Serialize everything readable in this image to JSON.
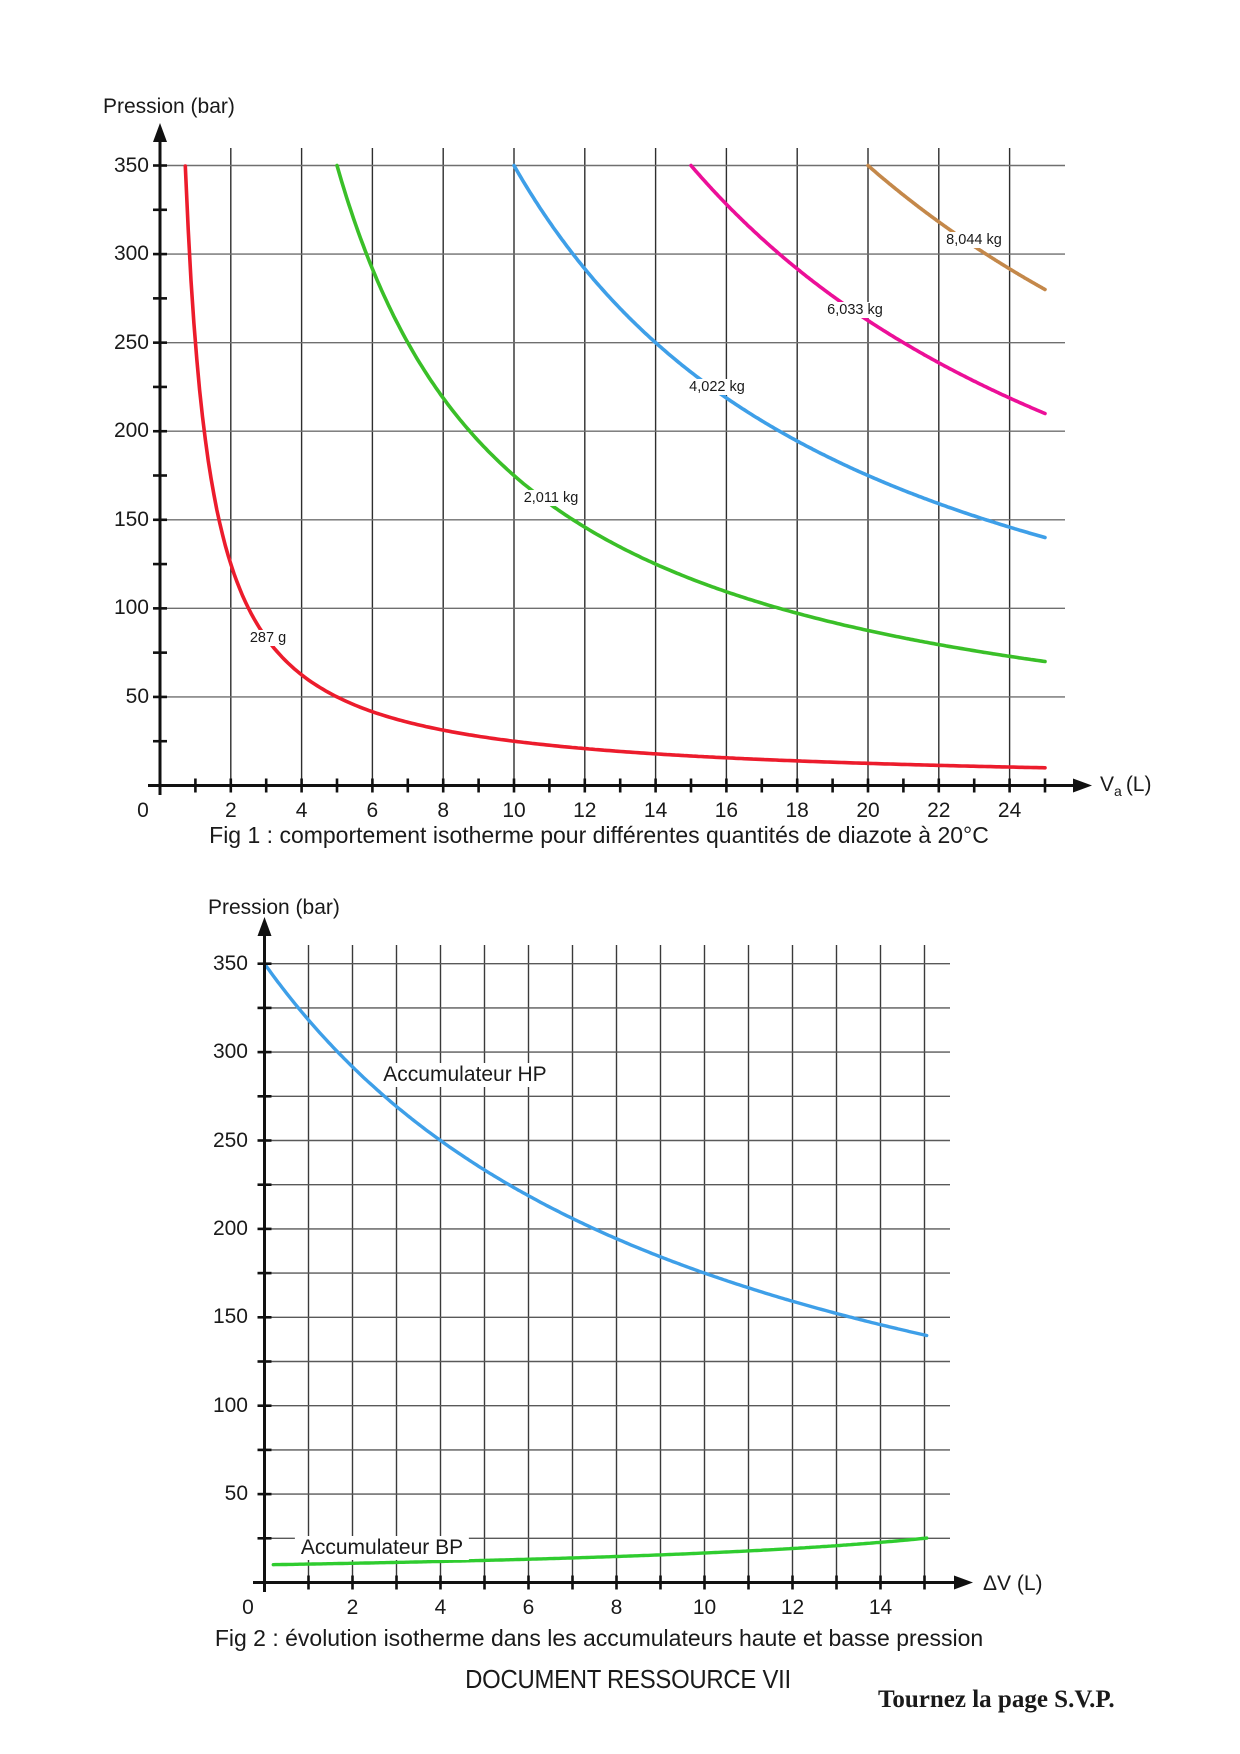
{
  "page": {
    "background": "#ffffff",
    "footer_center": "DOCUMENT RESSOURCE VII",
    "footer_right": "Tournez la page S.V.P."
  },
  "fig1": {
    "y_axis_title": "Pression (bar)",
    "x_title": {
      "main": "V",
      "sub": "a",
      "rest": "(L)"
    },
    "caption": "Fig 1 : comportement isotherme pour différentes quantités de diazote à 20°C",
    "origin_label": "0"
  },
  "fig2": {
    "y_axis_title": "Pression (bar)",
    "x_axis_title": "ΔV (L)",
    "caption": "Fig 2 : évolution isotherme dans les accumulateurs haute et basse pression",
    "origin_label": "0"
  },
  "chart_data": [
    {
      "id": "fig1",
      "type": "line",
      "title": "Fig 1 : comportement isotherme pour différentes quantités de diazote à 20°C",
      "xlabel": "Va (L)",
      "ylabel": "Pression (bar)",
      "xlim": [
        0,
        25.5
      ],
      "ylim": [
        0,
        360
      ],
      "x_label_ticks": [
        0,
        2,
        4,
        6,
        8,
        10,
        12,
        14,
        16,
        18,
        20,
        22,
        24
      ],
      "y_label_ticks": [
        50,
        100,
        150,
        200,
        250,
        300,
        350
      ],
      "x_minor_tick_step": 1,
      "y_minor_tick_step": 25,
      "x_gridline_step": 2,
      "y_gridline_step": 50,
      "grid": true,
      "legend_position": "labels-on-curves",
      "series": [
        {
          "label": "287 g",
          "color": "#ec1c2c",
          "model": "P = 250/Va",
          "pv_constant_bar_L": 250,
          "x_shift": 0,
          "sign": 1,
          "x_range": [
            0.715,
            25
          ],
          "points": [
            [
              0.72,
              350
            ],
            [
              1,
              250
            ],
            [
              1.5,
              167
            ],
            [
              2,
              125
            ],
            [
              3,
              83
            ],
            [
              4,
              63
            ],
            [
              5,
              50
            ],
            [
              6,
              42
            ],
            [
              8,
              31
            ],
            [
              10,
              25
            ],
            [
              12,
              21
            ],
            [
              14,
              18
            ],
            [
              16,
              16
            ],
            [
              18,
              14
            ],
            [
              20,
              13
            ],
            [
              22,
              11
            ],
            [
              24,
              10
            ],
            [
              25,
              10
            ]
          ]
        },
        {
          "label": "2,011 kg",
          "color": "#3abf28",
          "model": "P = 1750/Va",
          "pv_constant_bar_L": 1750,
          "x_shift": 0,
          "sign": 1,
          "x_range": [
            5,
            25
          ],
          "points": [
            [
              5,
              350
            ],
            [
              6,
              292
            ],
            [
              7,
              250
            ],
            [
              8,
              219
            ],
            [
              9,
              194
            ],
            [
              10,
              175
            ],
            [
              12,
              146
            ],
            [
              14,
              125
            ],
            [
              16,
              109
            ],
            [
              18,
              97
            ],
            [
              20,
              88
            ],
            [
              22,
              80
            ],
            [
              24,
              73
            ],
            [
              25,
              70
            ]
          ]
        },
        {
          "label": "4,022 kg",
          "color": "#3e9fe8",
          "model": "P = 3500/Va",
          "pv_constant_bar_L": 3500,
          "x_shift": 0,
          "sign": 1,
          "x_range": [
            10,
            25
          ],
          "points": [
            [
              10,
              350
            ],
            [
              12,
              292
            ],
            [
              14,
              250
            ],
            [
              16,
              219
            ],
            [
              18,
              194
            ],
            [
              20,
              175
            ],
            [
              22,
              159
            ],
            [
              24,
              146
            ],
            [
              25,
              140
            ]
          ]
        },
        {
          "label": "6,033 kg",
          "color": "#ec0f98",
          "model": "P = 5250/Va",
          "pv_constant_bar_L": 5250,
          "x_shift": 0,
          "sign": 1,
          "x_range": [
            15,
            25
          ],
          "points": [
            [
              15,
              350
            ],
            [
              16,
              328
            ],
            [
              18,
              292
            ],
            [
              20,
              263
            ],
            [
              22,
              239
            ],
            [
              24,
              219
            ],
            [
              25,
              210
            ]
          ]
        },
        {
          "label": "8,044 kg",
          "color": "#c4884a",
          "model": "P = 7000/Va",
          "pv_constant_bar_L": 7000,
          "x_shift": 0,
          "sign": 1,
          "x_range": [
            20,
            25
          ],
          "points": [
            [
              20,
              350
            ],
            [
              21,
              333
            ],
            [
              22,
              318
            ],
            [
              23,
              304
            ],
            [
              24,
              292
            ],
            [
              25,
              280
            ]
          ]
        }
      ]
    },
    {
      "id": "fig2",
      "type": "line",
      "title": "Fig 2 : évolution isotherme dans les accumulateurs haute et basse pression",
      "xlabel": "ΔV (L)",
      "ylabel": "Pression (bar)",
      "xlim": [
        0,
        15.6
      ],
      "ylim": [
        0,
        360
      ],
      "x_label_ticks": [
        0,
        2,
        4,
        6,
        8,
        10,
        12,
        14
      ],
      "y_label_ticks": [
        50,
        100,
        150,
        200,
        250,
        300,
        350
      ],
      "x_minor_tick_step": 1,
      "y_minor_tick_step": 25,
      "x_gridline_step": 1,
      "y_gridline_step": 25,
      "grid": true,
      "legend_position": "labels-on-curves",
      "series": [
        {
          "label": "Accumulateur HP",
          "color": "#3e9fe8",
          "model": "P = 3500/(10+ΔV)",
          "pv_constant_bar_L": 3500,
          "x_shift": 10,
          "sign": 1,
          "x_range": [
            0,
            15.05
          ],
          "points": [
            [
              0,
              350
            ],
            [
              1,
              318
            ],
            [
              2,
              292
            ],
            [
              3,
              269
            ],
            [
              4,
              250
            ],
            [
              5,
              233
            ],
            [
              6,
              219
            ],
            [
              7,
              206
            ],
            [
              8,
              194
            ],
            [
              9,
              184
            ],
            [
              10,
              175
            ],
            [
              11,
              167
            ],
            [
              12,
              159
            ],
            [
              13,
              152
            ],
            [
              14,
              146
            ],
            [
              15,
              140
            ]
          ]
        },
        {
          "label": "Accumulateur BP",
          "color": "#2fcc2f",
          "model": "P = 250/(25-ΔV)",
          "pv_constant_bar_L": 250,
          "x_shift": 25,
          "sign": -1,
          "x_range": [
            0.2,
            15.05
          ],
          "points": [
            [
              0,
              10
            ],
            [
              2,
              11
            ],
            [
              4,
              12
            ],
            [
              6,
              13
            ],
            [
              8,
              15
            ],
            [
              10,
              17
            ],
            [
              12,
              19
            ],
            [
              14,
              23
            ],
            [
              15,
              25
            ]
          ]
        }
      ]
    }
  ]
}
